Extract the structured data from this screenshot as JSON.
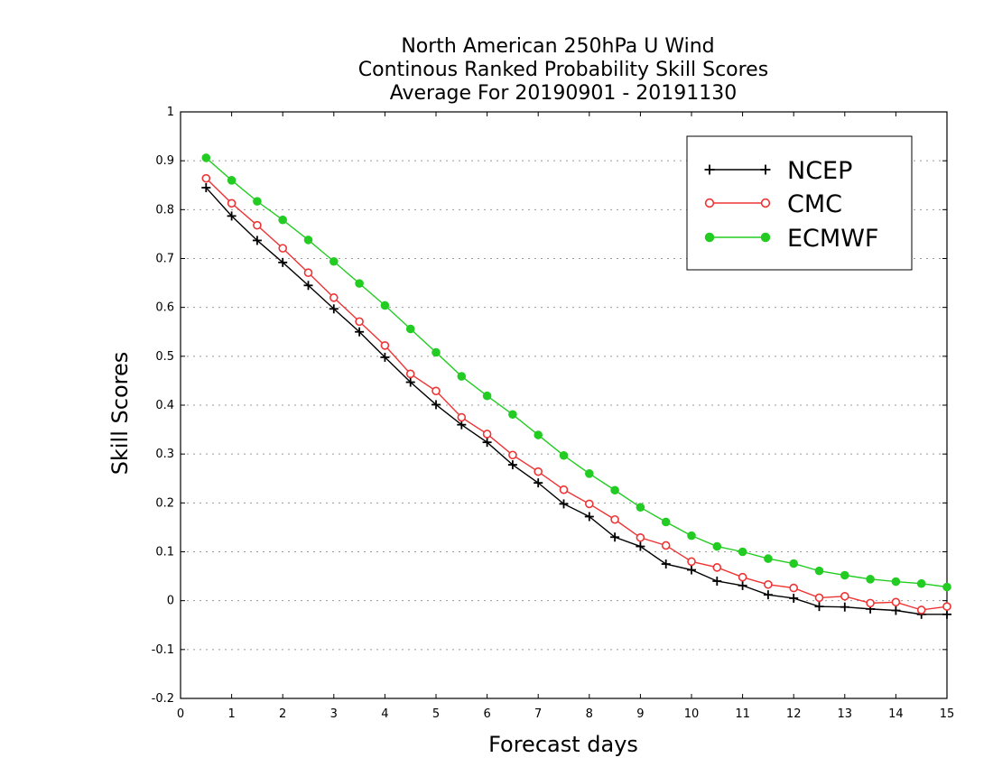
{
  "chart_data": {
    "type": "line",
    "title_lines": [
      "North American 250hPa U Wind",
      "Continous Ranked Probability Skill Scores",
      "Average For 20190901 - 20191130"
    ],
    "xlabel": "Forecast days",
    "ylabel": "Skill Scores",
    "xlim": [
      0,
      15
    ],
    "ylim": [
      -0.2,
      1
    ],
    "x_ticks": [
      0,
      1,
      2,
      3,
      4,
      5,
      6,
      7,
      8,
      9,
      10,
      11,
      12,
      13,
      14,
      15
    ],
    "x_tick_labels": [
      "0",
      "1",
      "2",
      "3",
      "4",
      "5",
      "6",
      "7",
      "8",
      "9",
      "10",
      "11",
      "12",
      "13",
      "14",
      "15"
    ],
    "y_ticks": [
      -0.2,
      -0.1,
      0,
      0.1,
      0.2,
      0.3,
      0.4,
      0.5,
      0.6,
      0.7,
      0.8,
      0.9,
      1
    ],
    "y_tick_labels": [
      "-0.2",
      "-0.1",
      "0",
      "0.1",
      "0.2",
      "0.3",
      "0.4",
      "0.5",
      "0.6",
      "0.7",
      "0.8",
      "0.9",
      "1"
    ],
    "grid": true,
    "legend_position": "top-right",
    "x": [
      0.5,
      1.0,
      1.5,
      2.0,
      2.5,
      3.0,
      3.5,
      4.0,
      4.5,
      5.0,
      5.5,
      6.0,
      6.5,
      7.0,
      7.5,
      8.0,
      8.5,
      9.0,
      9.5,
      10.0,
      10.5,
      11.0,
      11.5,
      12.0,
      12.5,
      13.0,
      13.5,
      14.0,
      14.5,
      15.0
    ],
    "series": [
      {
        "name": "NCEP",
        "color": "#000000",
        "marker": "plus",
        "values": [
          0.845,
          0.787,
          0.737,
          0.692,
          0.645,
          0.597,
          0.55,
          0.498,
          0.447,
          0.401,
          0.36,
          0.324,
          0.278,
          0.241,
          0.198,
          0.172,
          0.13,
          0.111,
          0.075,
          0.063,
          0.04,
          0.031,
          0.012,
          0.005,
          -0.012,
          -0.013,
          -0.017,
          -0.02,
          -0.028,
          -0.028
        ]
      },
      {
        "name": "CMC",
        "color": "#ee3333",
        "marker": "open-circle",
        "values": [
          0.864,
          0.813,
          0.768,
          0.721,
          0.671,
          0.62,
          0.571,
          0.522,
          0.464,
          0.429,
          0.375,
          0.341,
          0.298,
          0.264,
          0.227,
          0.198,
          0.166,
          0.129,
          0.113,
          0.08,
          0.068,
          0.048,
          0.033,
          0.026,
          0.006,
          0.009,
          -0.005,
          -0.003,
          -0.019,
          -0.012
        ]
      },
      {
        "name": "ECMWF",
        "color": "#22cc22",
        "marker": "filled-circle",
        "values": [
          0.906,
          0.86,
          0.817,
          0.779,
          0.738,
          0.694,
          0.649,
          0.604,
          0.556,
          0.508,
          0.459,
          0.419,
          0.381,
          0.339,
          0.297,
          0.26,
          0.226,
          0.191,
          0.161,
          0.133,
          0.111,
          0.1,
          0.086,
          0.076,
          0.061,
          0.052,
          0.044,
          0.039,
          0.035,
          0.028
        ]
      }
    ]
  }
}
